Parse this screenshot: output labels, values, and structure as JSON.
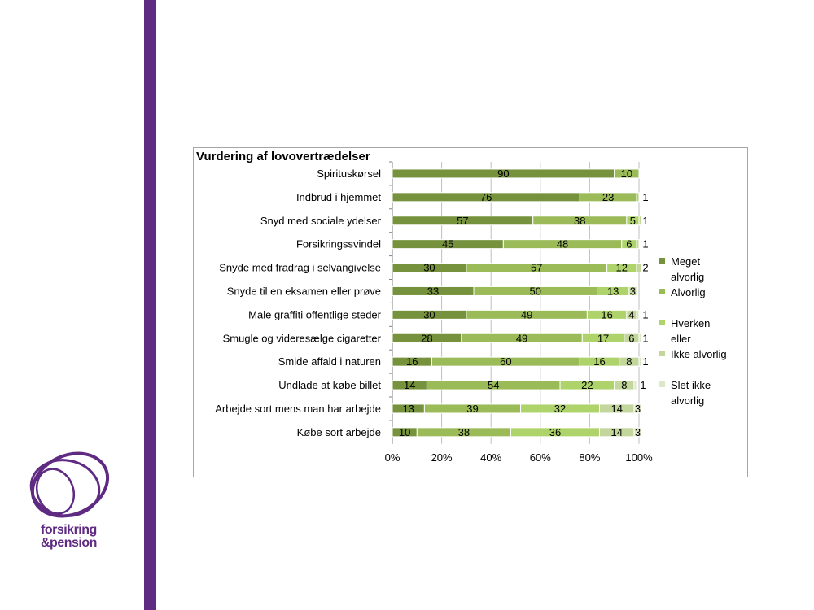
{
  "brand": {
    "name_line1": "forsikring",
    "name_line2": "&pension",
    "color": "#5f2a82"
  },
  "chart_data": {
    "type": "bar",
    "orientation": "horizontal",
    "stacked": "percent",
    "title": "Vurdering af lovovertrædelser",
    "categories": [
      "Spirituskørsel",
      "Indbrud i hjemmet",
      "Snyd med sociale ydelser",
      "Forsikringssvindel",
      "Snyde med fradrag i selvangivelse",
      "Snyde til en eksamen eller prøve",
      "Male graffiti offentlige steder",
      "Smugle og videresælge cigaretter",
      "Smide affald i naturen",
      "Undlade at købe billet",
      "Arbejde sort mens man har arbejde",
      "Købe sort arbejde"
    ],
    "series": [
      {
        "name": "Meget alvorlig",
        "color": "#76923c",
        "values": [
          90,
          76,
          57,
          45,
          30,
          33,
          30,
          28,
          16,
          14,
          13,
          10
        ]
      },
      {
        "name": "Alvorlig",
        "color": "#9bbb59",
        "values": [
          10,
          23,
          38,
          48,
          57,
          50,
          49,
          49,
          60,
          54,
          39,
          38
        ]
      },
      {
        "name": "Hverken eller",
        "color": "#aed36a",
        "values": [
          0,
          1,
          5,
          6,
          12,
          13,
          16,
          17,
          16,
          22,
          32,
          36
        ]
      },
      {
        "name": "Ikke alvorlig",
        "color": "#c3d69b",
        "values": [
          0,
          0,
          1,
          1,
          2,
          3,
          4,
          6,
          8,
          8,
          14,
          14
        ]
      },
      {
        "name": "Slet ikke alvorlig",
        "color": "#dce6c8",
        "values": [
          0,
          0,
          0,
          0,
          0,
          0,
          1,
          1,
          1,
          1,
          3,
          3
        ]
      }
    ],
    "value_labels": [
      [
        "90",
        "10",
        "",
        "",
        ""
      ],
      [
        "76",
        "23",
        "1",
        "",
        ""
      ],
      [
        "57",
        "38",
        "5",
        "1",
        ""
      ],
      [
        "45",
        "48",
        "6",
        "1",
        ""
      ],
      [
        "30",
        "57",
        "12",
        "2",
        ""
      ],
      [
        "33",
        "50",
        "13",
        "3",
        ""
      ],
      [
        "30",
        "49",
        "16",
        "4",
        "1"
      ],
      [
        "28",
        "49",
        "17",
        "6",
        "1"
      ],
      [
        "16",
        "60",
        "16",
        "8",
        "1"
      ],
      [
        "14",
        "54",
        "22",
        "8",
        "1"
      ],
      [
        "13",
        "39",
        "32",
        "14",
        "3"
      ],
      [
        "10",
        "38",
        "36",
        "14",
        "3"
      ]
    ],
    "xaxis": {
      "ticks": [
        "0%",
        "20%",
        "40%",
        "60%",
        "80%",
        "100%"
      ],
      "range": [
        0,
        100
      ]
    },
    "legend_position": "right",
    "gridlines": true
  }
}
